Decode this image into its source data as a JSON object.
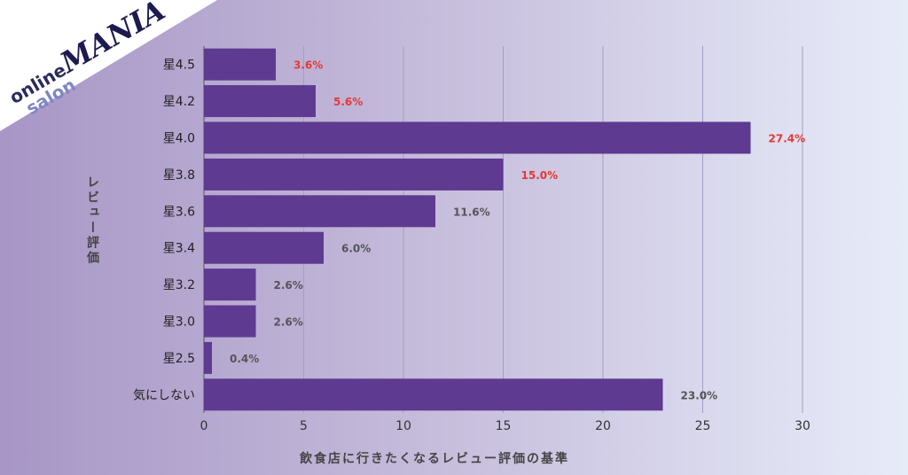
{
  "brand": {
    "line1": "online",
    "line2": "salon",
    "line3": "MANIA"
  },
  "chart_data": {
    "type": "bar",
    "orientation": "horizontal",
    "categories": [
      "星4.5",
      "星4.2",
      "星4.0",
      "星3.8",
      "星3.6",
      "星3.4",
      "星3.2",
      "星3.0",
      "星2.5",
      "気にしない"
    ],
    "values": [
      3.6,
      5.6,
      27.4,
      15.0,
      11.6,
      6.0,
      2.6,
      2.6,
      0.4,
      23.0
    ],
    "data_labels": [
      "3.6%",
      "5.6%",
      "27.4%",
      "15.0%",
      "11.6%",
      "6.0%",
      "2.6%",
      "2.6%",
      "0.4%",
      "23.0%"
    ],
    "highlighted": [
      true,
      true,
      true,
      true,
      false,
      false,
      false,
      false,
      false,
      false
    ],
    "xlabel": "飲食店に行きたくなるレビュー評価の基準",
    "ylabel": "レビュー評価",
    "xlim": [
      0,
      30
    ],
    "xticks": [
      0,
      5,
      10,
      15,
      20,
      25,
      30
    ],
    "grid": true,
    "colors": {
      "bar": "#5e3a90",
      "highlight_label": "#e53935",
      "label": "#555555"
    }
  }
}
